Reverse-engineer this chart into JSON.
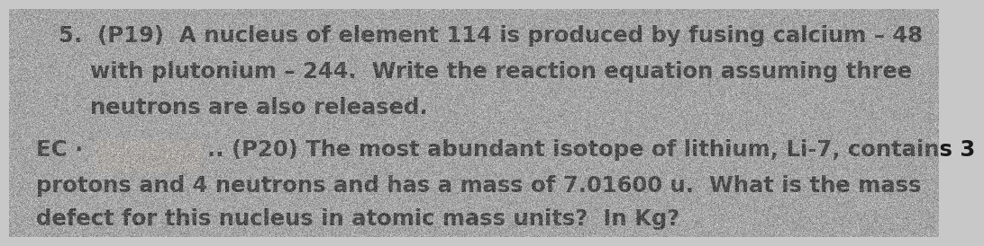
{
  "background_color": "#c8c8c8",
  "text_color": "#1a1a1a",
  "fig_width": 10.32,
  "fig_height": 2.54,
  "line1": "5.  (P19)  A nucleus of element 114 is produced by fusing calcium – 48",
  "line2": "      with plutonium – 244.  Write the reaction equation assuming three",
  "line3": "      neutrons are also released.",
  "line5": "protons and 4 neutrons and has a mass of 7.01600 u.  What is the mass",
  "line6": "defect for this nucleus in atomic mass units?  In Kg?",
  "font_size": 17.5,
  "font_family": "DejaVu Sans",
  "blob_color": "#d4cdc6",
  "ec_prefix": "EC ·",
  "p20_suffix": ".. (P20) The most abundant isotope of lithium, Li-7, contains 3"
}
